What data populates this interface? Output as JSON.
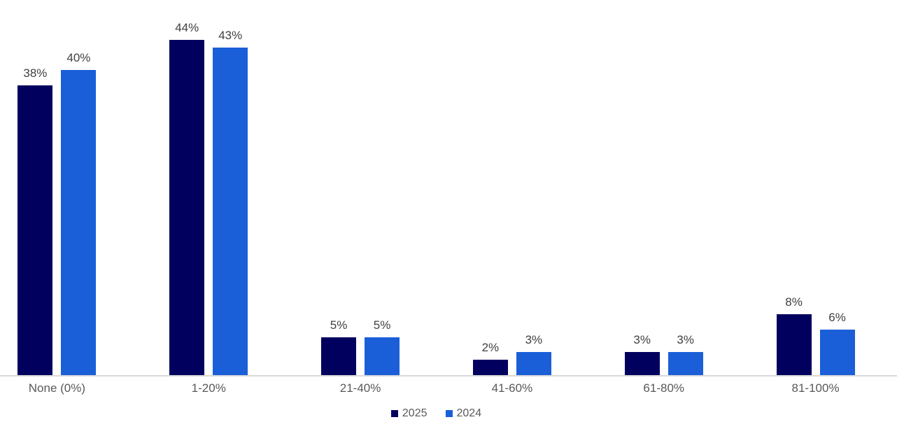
{
  "chart_data": {
    "type": "bar",
    "title": "",
    "xlabel": "",
    "ylabel": "",
    "categories": [
      "None (0%)",
      "1-20%",
      "21-40%",
      "41-60%",
      "61-80%",
      "81-100%"
    ],
    "series": [
      {
        "name": "2025",
        "color": "#01005E",
        "values": [
          38,
          44,
          5,
          2,
          3,
          8
        ],
        "labels": [
          "38%",
          "44%",
          "5%",
          "2%",
          "3%",
          "8%"
        ]
      },
      {
        "name": "2024",
        "color": "#1A5FD8",
        "values": [
          40,
          43,
          5,
          3,
          3,
          6
        ],
        "labels": [
          "40%",
          "43%",
          "5%",
          "3%",
          "3%",
          "6%"
        ]
      }
    ],
    "ylim": [
      0,
      49.2
    ],
    "grid": false,
    "axis_line_color": "#D9D9D9",
    "value_label_color": "#404040",
    "axis_text_color": "#595959",
    "legend_position": "bottom-center",
    "value_label_suffix": "%"
  }
}
